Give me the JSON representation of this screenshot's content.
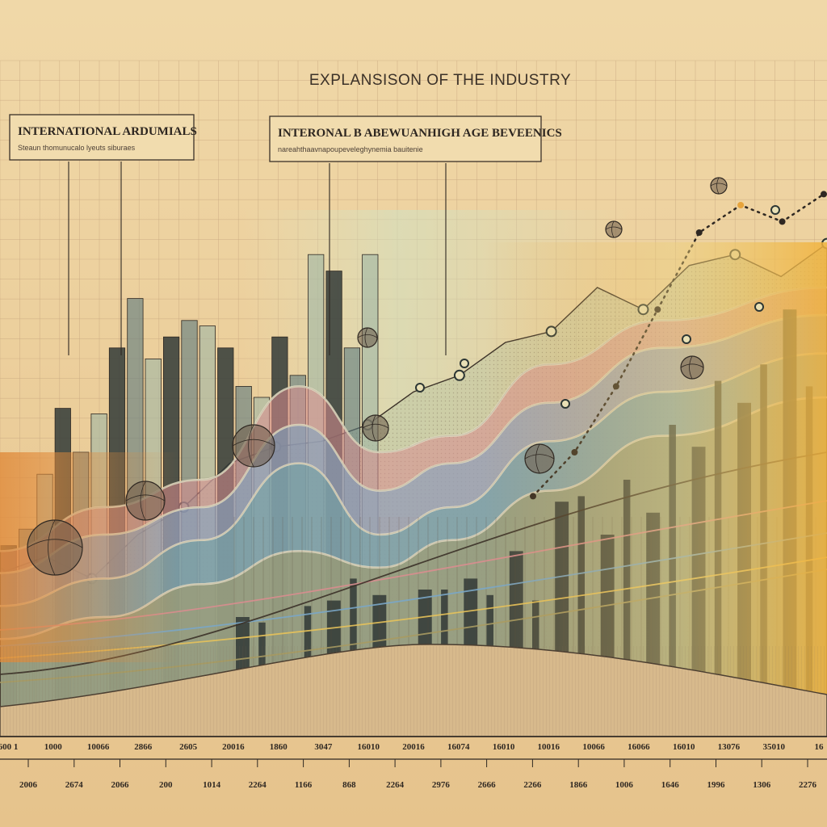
{
  "chart_data": {
    "title": "EXPLANSISON OF THE INDUSTRY",
    "callouts": [
      {
        "title": "INTERNATIONAL ARDUMIALS",
        "subtitle": "Steaun thomunucalo lyeuts siburaes"
      },
      {
        "title": "INTERONAL B ABEWUANHIGH AGE BEVEENICS",
        "subtitle": "nareahthaavnapoupeveleghynemia bauitenie"
      }
    ],
    "upper_tick_labels": [
      "600 1",
      "1000",
      "10066",
      "2866",
      "2605",
      "20016",
      "1860",
      "3047",
      "16010",
      "20016",
      "16074",
      "16010",
      "10016",
      "10066",
      "16066",
      "16010",
      "13076",
      "35010",
      "16"
    ],
    "lower_tick_labels": [
      "2006",
      "2674",
      "2066",
      "200",
      "1014",
      "2264",
      "1166",
      "868",
      "2264",
      "2976",
      "2666",
      "2266",
      "1866",
      "1006",
      "1646",
      "1996",
      "1306",
      "2276"
    ],
    "palette": {
      "background": "#ecd3a1",
      "grid": "#c9a880",
      "ink": "#2f2822",
      "bar_dark": "#333b38",
      "bar_teal": "#5b7a7e",
      "band_pink": "#d98d8f",
      "band_blue": "#7aa6c7",
      "band_teal": "#6fa3a2",
      "band_olive": "#a79a62",
      "accent_orange": "#e7a43b",
      "accent_yellow": "#f1c44c"
    },
    "type": "bar",
    "left_bars": [
      0.33,
      0.36,
      0.46,
      0.58,
      0.5,
      0.57,
      0.69,
      0.78,
      0.67,
      0.71,
      0.74,
      0.73,
      0.69,
      0.62,
      0.6,
      0.71,
      0.64,
      0.86,
      0.83,
      0.69,
      0.86
    ],
    "right_bars": [
      0.2,
      0.19,
      0.12,
      0.22,
      0.23,
      0.27,
      0.24,
      0.14,
      0.25,
      0.25,
      0.27,
      0.24,
      0.32,
      0.23,
      0.41,
      0.42,
      0.35,
      0.45,
      0.39,
      0.55,
      0.51,
      0.63,
      0.59,
      0.66,
      0.76,
      0.62
    ],
    "mountain": [
      0.28,
      0.31,
      0.27,
      0.35,
      0.4,
      0.48,
      0.51,
      0.52,
      0.55,
      0.61,
      0.64,
      0.7,
      0.72,
      0.8,
      0.76,
      0.84,
      0.86,
      0.82,
      0.88
    ],
    "band_series": [
      {
        "values": [
          0.32,
          0.4,
          0.45,
          0.62,
          0.5,
          0.53,
          0.66,
          0.74,
          0.8
        ]
      },
      {
        "values": [
          0.28,
          0.35,
          0.4,
          0.55,
          0.43,
          0.48,
          0.59,
          0.69,
          0.75
        ]
      },
      {
        "values": [
          0.22,
          0.27,
          0.34,
          0.48,
          0.35,
          0.4,
          0.52,
          0.61,
          0.68
        ]
      },
      {
        "values": [
          0.16,
          0.2,
          0.26,
          0.32,
          0.29,
          0.34,
          0.43,
          0.53,
          0.6
        ]
      }
    ],
    "dotted_trend": [
      0.42,
      0.5,
      0.62,
      0.76,
      0.9,
      0.95,
      0.92,
      0.97
    ]
  }
}
